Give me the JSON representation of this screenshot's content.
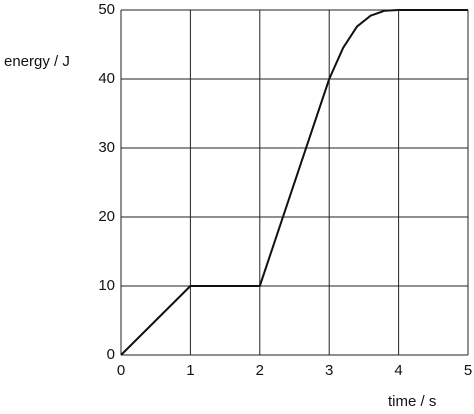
{
  "chart_data": {
    "type": "line",
    "y_label": "energy / J",
    "x_label": "time / s",
    "x": [
      0,
      1,
      2,
      3,
      3.2,
      3.4,
      3.6,
      3.8,
      4,
      5
    ],
    "series": [
      {
        "color": "#111111",
        "values": [
          0,
          10,
          10,
          40,
          44.5,
          47.6,
          49.2,
          49.9,
          50,
          50
        ]
      }
    ],
    "xlim": [
      0,
      5
    ],
    "ylim": [
      0,
      50
    ],
    "xticks": [
      0,
      1,
      2,
      3,
      4,
      5
    ],
    "yticks": [
      0,
      10,
      20,
      30,
      40,
      50
    ],
    "grid": true
  }
}
